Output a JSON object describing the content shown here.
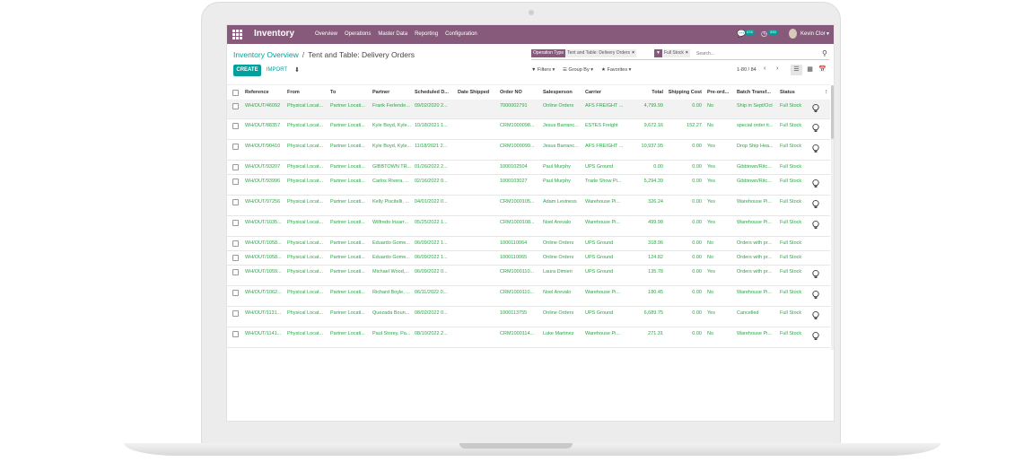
{
  "navbar": {
    "brand": "Inventory",
    "menu": [
      "Overview",
      "Operations",
      "Master Data",
      "Reporting",
      "Configuration"
    ],
    "messages_count": "478",
    "activities_count": "339",
    "user_name": "Kevin Clor",
    "accent_color": "#875a7b"
  },
  "breadcrumb": {
    "parent": "Inventory Overview",
    "separator": "/",
    "current": "Tent and Table: Delivery Orders"
  },
  "search": {
    "facets": [
      {
        "label": "Operation Type",
        "value": "Tent and Table: Delivery Orders"
      },
      {
        "label": "▼",
        "value": "Full Stock"
      }
    ],
    "placeholder": "Search...",
    "icon": "search-icon"
  },
  "buttons": {
    "create": "CREATE",
    "import": "IMPORT",
    "primary_color": "#00a09d"
  },
  "filters": {
    "filters": "Filters",
    "group_by": "Group By",
    "favorites": "Favorites"
  },
  "pager": {
    "range": "1-80 / 84",
    "prev": "‹",
    "next": "›"
  },
  "views": [
    "list-view-icon",
    "kanban-view-icon",
    "calendar-view-icon"
  ],
  "table": {
    "columns": [
      "Reference",
      "From",
      "To",
      "Partner",
      "Scheduled D...",
      "Date Shipped",
      "Order NO",
      "Salesperson",
      "Carrier",
      "Total",
      "Shipping Cost",
      "Pre-ord...",
      "Batch Transf...",
      "Status",
      "⋮"
    ],
    "rows": [
      {
        "ref": "WH/OUT/46092",
        "from": "Physical Locat...",
        "to": "Partner Locati...",
        "partner": "Frank Ferlende...",
        "scheduled": "09/02/2020 2...",
        "shipped": "",
        "order_no": "7000002791",
        "salesperson": "Online Orders",
        "carrier": "AFS FREIGHT ...",
        "total": "4,799.99",
        "shipping_cost": "0.00",
        "preorder": "No",
        "batch": "Ship in Sept/Oct",
        "status": "Full Stock",
        "bulb": true
      },
      {
        "ref": "WH/OUT/88357",
        "from": "Physical Locat...",
        "to": "Partner Locati...",
        "partner": "Kyle Boyd, Kyle...",
        "scheduled": "10/18/2021 1...",
        "shipped": "",
        "order_no": "CRM1000098...",
        "salesperson": "Jesus Barranc...",
        "carrier": "ESTES Freight",
        "total": "9,672.16",
        "shipping_cost": "152.27",
        "preorder": "No",
        "batch": "special order it...",
        "status": "Full Stock",
        "bulb": true
      },
      {
        "ref": "WH/OUT/90410",
        "from": "Physical Locat...",
        "to": "Partner Locati...",
        "partner": "Kyle Boyd, Kyle...",
        "scheduled": "11/18/2021 2...",
        "shipped": "",
        "order_no": "CRM1000099...",
        "salesperson": "Jesus Barranc...",
        "carrier": "AFS FREIGHT ...",
        "total": "10,937.95",
        "shipping_cost": "0.00",
        "preorder": "Yes",
        "batch": "Drop Ship Hea...",
        "status": "Full Stock",
        "bulb": true
      },
      {
        "ref": "WH/OUT/93207",
        "from": "Physical Locat...",
        "to": "Partner Locati...",
        "partner": "GIBBTOWN TR...",
        "scheduled": "01/26/2022 2...",
        "shipped": "",
        "order_no": "1000102504",
        "salesperson": "Paul Murphy",
        "carrier": "UPS Ground",
        "total": "0.00",
        "shipping_cost": "0.00",
        "preorder": "Yes",
        "batch": "Gibbtown/Ritc...",
        "status": "Full Stock",
        "bulb": false
      },
      {
        "ref": "WH/OUT/93996",
        "from": "Physical Locat...",
        "to": "Partner Locati...",
        "partner": "Carlos Rivera, ...",
        "scheduled": "02/16/2022 0...",
        "shipped": "",
        "order_no": "1000103027",
        "salesperson": "Paul Murphy",
        "carrier": "Trade Show Pi...",
        "total": "5,294.39",
        "shipping_cost": "0.00",
        "preorder": "Yes",
        "batch": "Gibbtown/Ritc...",
        "status": "Full Stock",
        "bulb": true
      },
      {
        "ref": "WH/OUT/97256",
        "from": "Physical Locat...",
        "to": "Partner Locati...",
        "partner": "Kelly Piscitelli, ...",
        "scheduled": "04/01/2022 0...",
        "shipped": "",
        "order_no": "CRM1000105...",
        "salesperson": "Adam Leviness",
        "carrier": "Warehouse Pi...",
        "total": "326.24",
        "shipping_cost": "0.00",
        "preorder": "Yes",
        "batch": "Warehouse Pi...",
        "status": "Full Stock",
        "bulb": true
      },
      {
        "ref": "WH/OUT/1035...",
        "from": "Physical Locat...",
        "to": "Partner Locati...",
        "partner": "Wilfredo Irizarr...",
        "scheduled": "05/25/2022 1...",
        "shipped": "",
        "order_no": "CRM1000108...",
        "salesperson": "Noel Arevalo",
        "carrier": "Warehouse Pi...",
        "total": "499.98",
        "shipping_cost": "0.00",
        "preorder": "Yes",
        "batch": "Warehouse Pi...",
        "status": "Full Stock",
        "bulb": true
      },
      {
        "ref": "WH/OUT/1058...",
        "from": "Physical Locat...",
        "to": "Partner Locati...",
        "partner": "Eduardo Gome...",
        "scheduled": "06/09/2022 1...",
        "shipped": "",
        "order_no": "1000110064",
        "salesperson": "Online Orders",
        "carrier": "UPS Ground",
        "total": "318.96",
        "shipping_cost": "0.00",
        "preorder": "No",
        "batch": "Orders with pr...",
        "status": "Full Stock",
        "bulb": false
      },
      {
        "ref": "WH/OUT/1058...",
        "from": "Physical Locat...",
        "to": "Partner Locati...",
        "partner": "Eduardo Gome...",
        "scheduled": "06/09/2022 1...",
        "shipped": "",
        "order_no": "1000110065",
        "salesperson": "Online Orders",
        "carrier": "UPS Ground",
        "total": "124.82",
        "shipping_cost": "0.00",
        "preorder": "No",
        "batch": "Orders with pr...",
        "status": "Full Stock",
        "bulb": false
      },
      {
        "ref": "WH/OUT/1059...",
        "from": "Physical Locat...",
        "to": "Partner Locati...",
        "partner": "Michael Wood,...",
        "scheduled": "06/09/2022 0...",
        "shipped": "",
        "order_no": "CRM1000110...",
        "salesperson": "Laura Dimieri",
        "carrier": "UPS Ground",
        "total": "135.78",
        "shipping_cost": "0.00",
        "preorder": "Yes",
        "batch": "Orders with pr...",
        "status": "Full Stock",
        "bulb": true
      },
      {
        "ref": "WH/OUT/1062...",
        "from": "Physical Locat...",
        "to": "Partner Locati...",
        "partner": "Richard Boyle, ...",
        "scheduled": "06/11/2022 0...",
        "shipped": "",
        "order_no": "CRM1000110...",
        "salesperson": "Noel Arevalo",
        "carrier": "Warehouse Pi...",
        "total": "180.45",
        "shipping_cost": "0.00",
        "preorder": "No",
        "batch": "Warehouse Pi...",
        "status": "Full Stock",
        "bulb": true
      },
      {
        "ref": "WH/OUT/1131...",
        "from": "Physical Locat...",
        "to": "Partner Locati...",
        "partner": "Quezada Boun...",
        "scheduled": "08/02/2022 0...",
        "shipped": "",
        "order_no": "1000113755",
        "salesperson": "Online Orders",
        "carrier": "UPS Ground",
        "total": "6,689.75",
        "shipping_cost": "0.00",
        "preorder": "Yes",
        "batch": "Cancelled",
        "status": "Full Stock",
        "bulb": true
      },
      {
        "ref": "WH/OUT/1141...",
        "from": "Physical Locat...",
        "to": "Partner Locati...",
        "partner": "Paul Storey, Pa...",
        "scheduled": "08/10/2022 2...",
        "shipped": "",
        "order_no": "CRM1000114...",
        "salesperson": "Luke Martinez",
        "carrier": "Warehouse Pi...",
        "total": "271.31",
        "shipping_cost": "0.00",
        "preorder": "No",
        "batch": "Warehouse Pi...",
        "status": "Full Stock",
        "bulb": true
      }
    ],
    "text_color": "#28a745"
  }
}
